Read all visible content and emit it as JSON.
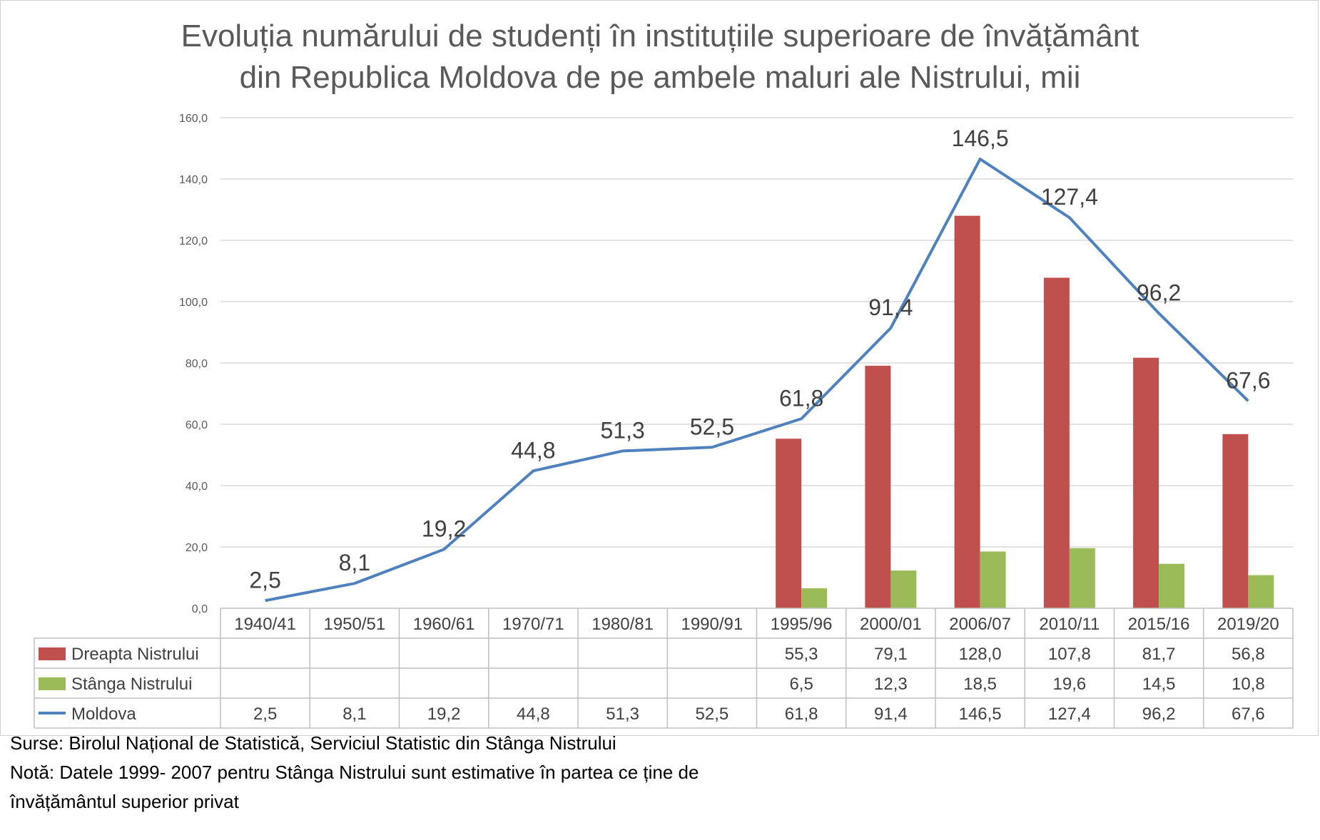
{
  "title_lines": [
    "Evoluția numărului de studenți în instituțiile superioare de învățământ",
    "din Republica Moldova de pe ambele maluri ale Nistrului, mii"
  ],
  "notes": {
    "source": "Surse: Birolul Național de Statistică, Serviciul Statistic din Stânga Nistrului",
    "note_line1": "Notă: Datele 1999- 2007 pentru Stânga Nistrului sunt estimative în partea ce ține de",
    "note_line2": "învățământul superior privat"
  },
  "colors": {
    "dreapta": "#c0504d",
    "stanga": "#9bbb59",
    "moldova": "#4f81bd",
    "grid": "#d9d9d9"
  },
  "chart_data": {
    "type": "bar",
    "title": "Evoluția numărului de studenți în instituțiile superioare de învățământ din Republica Moldova de pe ambele maluri ale Nistrului, mii",
    "categories": [
      "1940/41",
      "1950/51",
      "1960/61",
      "1970/71",
      "1980/81",
      "1990/91",
      "1995/96",
      "2000/01",
      "2006/07",
      "2010/11",
      "2015/16",
      "2019/20"
    ],
    "ylim": [
      0,
      160
    ],
    "yticks": [
      "0,0",
      "20,0",
      "40,0",
      "60,0",
      "80,0",
      "100,0",
      "120,0",
      "140,0",
      "160,0"
    ],
    "grid": true,
    "legend": "data-table",
    "series": [
      {
        "name": "Dreapta Nistrului",
        "type": "bar",
        "values": [
          null,
          null,
          null,
          null,
          null,
          null,
          55.3,
          79.1,
          128.0,
          107.8,
          81.7,
          56.8
        ],
        "labels": [
          "",
          "",
          "",
          "",
          "",
          "",
          "55,3",
          "79,1",
          "128,0",
          "107,8",
          "81,7",
          "56,8"
        ]
      },
      {
        "name": "Stânga Nistrului",
        "type": "bar",
        "values": [
          null,
          null,
          null,
          null,
          null,
          null,
          6.5,
          12.3,
          18.5,
          19.6,
          14.5,
          10.8
        ],
        "labels": [
          "",
          "",
          "",
          "",
          "",
          "",
          "6,5",
          "12,3",
          "18,5",
          "19,6",
          "14,5",
          "10,8"
        ]
      },
      {
        "name": "Moldova",
        "type": "line",
        "values": [
          2.5,
          8.1,
          19.2,
          44.8,
          51.3,
          52.5,
          61.8,
          91.4,
          146.5,
          127.4,
          96.2,
          67.6
        ],
        "labels": [
          "2,5",
          "8,1",
          "19,2",
          "44,8",
          "51,3",
          "52,5",
          "61,8",
          "91,4",
          "146,5",
          "127,4",
          "96,2",
          "67,6"
        ]
      }
    ]
  }
}
